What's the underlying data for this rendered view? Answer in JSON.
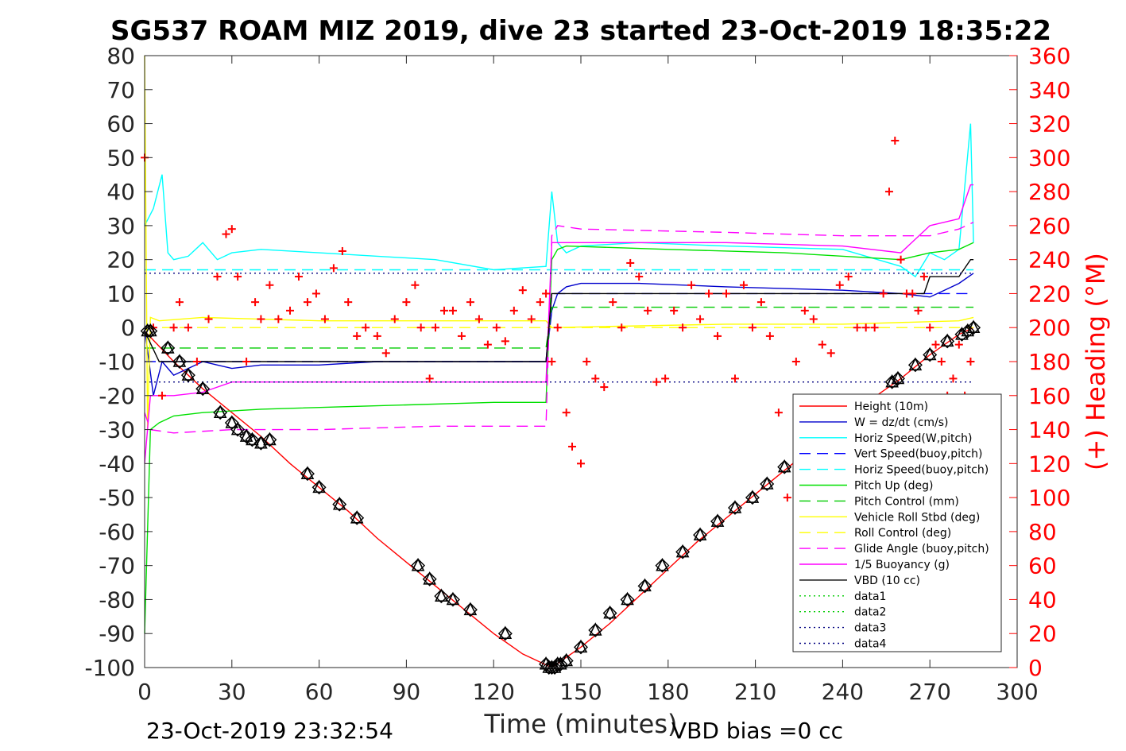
{
  "chart_data": {
    "type": "line",
    "title": "SG537 ROAM MIZ 2019, dive 23 started 23-Oct-2019 18:35:22",
    "xlabel": "Time (minutes)",
    "ylabel_right": "(+) Heading (°M)",
    "xlim": [
      0,
      300
    ],
    "ylim": [
      -100,
      80
    ],
    "ylim_right": [
      0,
      360
    ],
    "x_ticks": [
      "0",
      "30",
      "60",
      "90",
      "120",
      "150",
      "180",
      "210",
      "240",
      "270",
      "300"
    ],
    "y_ticks": [
      "80",
      "70",
      "60",
      "50",
      "40",
      "30",
      "20",
      "10",
      "0",
      "-10",
      "-20",
      "-30",
      "-40",
      "-50",
      "-60",
      "-70",
      "-80",
      "-90",
      "-100"
    ],
    "y_right_ticks": [
      "360",
      "340",
      "320",
      "300",
      "280",
      "260",
      "240",
      "220",
      "200",
      "180",
      "160",
      "140",
      "120",
      "100",
      "80",
      "60",
      "40",
      "20",
      "0"
    ],
    "grid": false,
    "legend_position": "bottom-right",
    "footer_left": "23-Oct-2019 23:32:54",
    "footer_right": "VBD bias =0 cc",
    "colors": {
      "depth": "#ff0000",
      "w": "#0000cc",
      "horiz": "#00ffff",
      "pitch": "#00e000",
      "roll": "#ffff00",
      "glide": "#ff00ff",
      "vbd": "#000000",
      "heading": "#ff0000",
      "data3": "#000080"
    },
    "series": [
      {
        "name": "Height (10m)",
        "color": "#ff0000",
        "style": "solid",
        "x": [
          0,
          10,
          20,
          30,
          40,
          50,
          60,
          70,
          80,
          90,
          100,
          110,
          120,
          130,
          140,
          150,
          160,
          170,
          180,
          190,
          200,
          210,
          220,
          230,
          240,
          250,
          260,
          270,
          280,
          285
        ],
        "y": [
          -1,
          -10,
          -18,
          -25,
          -32,
          -40,
          -47,
          -54,
          -62,
          -69,
          -76,
          -83,
          -90,
          -96,
          -100,
          -94,
          -87,
          -79,
          -71,
          -63,
          -56,
          -49,
          -42,
          -35,
          -28,
          -21,
          -15,
          -8,
          -2,
          0
        ]
      },
      {
        "name": "W = dz/dt (cm/s)",
        "color": "#0000cc",
        "style": "solid",
        "x": [
          0,
          3,
          6,
          10,
          15,
          20,
          25,
          30,
          40,
          60,
          80,
          100,
          120,
          138,
          140,
          142,
          145,
          150,
          170,
          200,
          240,
          260,
          270,
          275,
          280,
          285
        ],
        "y": [
          0,
          -20,
          -10,
          -14,
          -12,
          -10,
          -11,
          -12,
          -11,
          -11,
          -10,
          -10,
          -10,
          -10,
          5,
          10,
          12,
          13,
          13,
          12,
          11,
          10,
          9,
          11,
          13,
          16
        ]
      },
      {
        "name": "Horiz Speed(W,pitch)",
        "color": "#00ffff",
        "style": "solid",
        "x": [
          0,
          3,
          6,
          8,
          10,
          15,
          20,
          25,
          30,
          40,
          60,
          80,
          100,
          120,
          138,
          140,
          142,
          145,
          150,
          170,
          200,
          240,
          260,
          265,
          270,
          275,
          280,
          284,
          285
        ],
        "y": [
          30,
          35,
          45,
          22,
          20,
          21,
          25,
          20,
          22,
          23,
          22,
          21,
          20,
          17,
          18,
          40,
          25,
          22,
          24,
          25,
          24,
          23,
          18,
          15,
          22,
          20,
          23,
          60,
          25
        ]
      },
      {
        "name": "Vert Speed(buoy,pitch)",
        "color": "#0000ff",
        "style": "dash",
        "x": [
          0,
          5,
          138,
          140,
          285
        ],
        "y": [
          -10,
          -10,
          -10,
          10,
          10
        ]
      },
      {
        "name": "Horiz Speed(buoy,pitch)",
        "color": "#00ffff",
        "style": "dash",
        "x": [
          0,
          5,
          138,
          140,
          285
        ],
        "y": [
          17,
          17,
          17,
          17,
          17
        ]
      },
      {
        "name": "Pitch Up (deg)",
        "color": "#00e000",
        "style": "solid",
        "x": [
          0,
          2,
          5,
          10,
          20,
          40,
          80,
          120,
          138,
          140,
          142,
          145,
          180,
          220,
          260,
          270,
          280,
          285
        ],
        "y": [
          -90,
          -30,
          -28,
          -26,
          -25,
          -24,
          -23,
          -22,
          -22,
          20,
          23,
          24,
          23,
          22,
          20,
          22,
          23,
          25
        ]
      },
      {
        "name": "Pitch Control (mm)",
        "color": "#00cc00",
        "style": "dash",
        "x": [
          0,
          138,
          140,
          285
        ],
        "y": [
          -6,
          -6,
          6,
          6
        ]
      },
      {
        "name": "Vehicle Roll Stbd (deg)",
        "color": "#ffff00",
        "style": "solid",
        "x": [
          0,
          1,
          2,
          5,
          20,
          60,
          100,
          138,
          140,
          200,
          240,
          280,
          285
        ],
        "y": [
          80,
          -30,
          3,
          2,
          3,
          2,
          2,
          2,
          0,
          1,
          1,
          2,
          3
        ]
      },
      {
        "name": "Roll Control (deg)",
        "color": "#ffff00",
        "style": "dash",
        "x": [
          0,
          138,
          140,
          285
        ],
        "y": [
          0,
          0,
          0,
          0
        ]
      },
      {
        "name": "Glide Angle (buoy,pitch)",
        "color": "#ff00ff",
        "style": "dash",
        "x": [
          0,
          2,
          10,
          30,
          60,
          100,
          138,
          140,
          142,
          150,
          200,
          240,
          270,
          280,
          285
        ],
        "y": [
          -25,
          -30,
          -31,
          -30,
          -30,
          -29,
          -29,
          27,
          30,
          29,
          28,
          27,
          27,
          29,
          31
        ]
      },
      {
        "name": "1/5 Buoyancy (g)",
        "color": "#ff00ff",
        "style": "solid",
        "x": [
          0,
          2,
          5,
          10,
          20,
          30,
          60,
          100,
          138,
          140,
          145,
          200,
          240,
          260,
          270,
          280,
          284,
          285
        ],
        "y": [
          -40,
          -20,
          -20,
          -20,
          -19,
          -16,
          -16,
          -16,
          -16,
          25,
          25,
          25,
          24,
          22,
          30,
          32,
          42,
          42
        ]
      },
      {
        "name": "VBD (10 cc)",
        "color": "#000000",
        "style": "solid",
        "x": [
          0,
          5,
          10,
          138,
          140,
          142,
          268,
          270,
          280,
          284,
          285
        ],
        "y": [
          -1,
          -10,
          -10,
          -10,
          10,
          10,
          10,
          15,
          15,
          20,
          20
        ]
      },
      {
        "name": "data1",
        "color": "#00cc00",
        "style": "dot",
        "x": [],
        "y": []
      },
      {
        "name": "data2",
        "color": "#00cc00",
        "style": "dot",
        "x": [],
        "y": []
      },
      {
        "name": "data3",
        "color": "#000080",
        "style": "dot",
        "x": [
          0,
          285
        ],
        "y": [
          16,
          16
        ]
      },
      {
        "name": "data4",
        "color": "#000080",
        "style": "dot",
        "x": [
          0,
          285
        ],
        "y": [
          -16,
          -16
        ]
      }
    ],
    "heading": {
      "axis": "right",
      "marker": "+",
      "color": "#ff0000",
      "x": [
        0,
        3,
        6,
        10,
        12,
        15,
        18,
        22,
        25,
        28,
        30,
        32,
        35,
        38,
        40,
        43,
        46,
        50,
        53,
        56,
        59,
        62,
        65,
        68,
        70,
        73,
        76,
        80,
        83,
        86,
        90,
        93,
        95,
        98,
        100,
        103,
        106,
        109,
        112,
        115,
        118,
        121,
        124,
        127,
        130,
        133,
        136,
        138,
        140,
        142,
        145,
        147,
        150,
        152,
        155,
        158,
        161,
        164,
        167,
        170,
        173,
        176,
        179,
        182,
        185,
        188,
        191,
        194,
        197,
        200,
        203,
        206,
        209,
        212,
        215,
        218,
        221,
        224,
        227,
        230,
        233,
        236,
        239,
        242,
        245,
        248,
        251,
        254,
        256,
        258,
        260,
        262,
        264,
        266,
        268,
        270,
        272,
        274,
        276,
        278,
        280,
        282,
        284
      ],
      "y": [
        300,
        200,
        160,
        200,
        215,
        200,
        180,
        205,
        230,
        255,
        258,
        230,
        180,
        215,
        205,
        225,
        205,
        210,
        230,
        215,
        220,
        205,
        235,
        245,
        215,
        195,
        200,
        195,
        185,
        205,
        215,
        225,
        200,
        170,
        200,
        210,
        210,
        195,
        215,
        205,
        190,
        200,
        192,
        210,
        222,
        205,
        215,
        220,
        180,
        200,
        150,
        130,
        120,
        180,
        170,
        165,
        215,
        200,
        238,
        230,
        210,
        168,
        170,
        210,
        200,
        225,
        205,
        220,
        195,
        220,
        170,
        225,
        200,
        215,
        195,
        150,
        100,
        180,
        210,
        205,
        190,
        185,
        225,
        230,
        200,
        200,
        200,
        220,
        280,
        310,
        240,
        220,
        220,
        210,
        230,
        200,
        190,
        180,
        160,
        170,
        190,
        160,
        180
      ]
    },
    "markers": {
      "symbol": "triangle-diamond",
      "color": "#000000",
      "x": [
        1,
        2,
        8,
        12,
        15,
        20,
        26,
        30,
        32,
        35,
        37,
        40,
        43,
        56,
        60,
        67,
        73,
        94,
        98,
        102,
        106,
        112,
        124,
        138,
        139,
        140,
        141,
        142,
        143,
        145,
        150,
        155,
        160,
        166,
        172,
        178,
        185,
        191,
        197,
        203,
        209,
        214,
        220,
        257,
        259,
        265,
        270,
        276,
        281,
        283,
        285
      ],
      "y": [
        -1,
        -1,
        -6,
        -10,
        -14,
        -18,
        -25,
        -28,
        -30,
        -32,
        -33,
        -34,
        -33,
        -43,
        -47,
        -52,
        -56,
        -70,
        -74,
        -79,
        -80,
        -83,
        -90,
        -99,
        -100,
        -100,
        -100,
        -99,
        -99,
        -98,
        -94,
        -89,
        -84,
        -80,
        -76,
        -70,
        -66,
        -61,
        -57,
        -53,
        -50,
        -46,
        -41,
        -16,
        -15,
        -11,
        -8,
        -4,
        -2,
        -1,
        0
      ]
    }
  }
}
